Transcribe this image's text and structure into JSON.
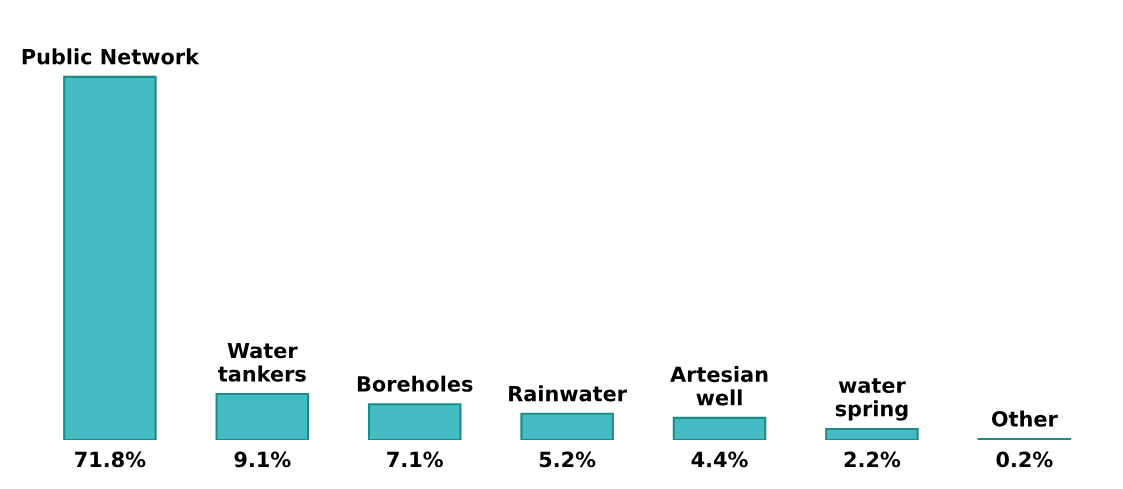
{
  "chart_data": {
    "type": "bar",
    "categories": [
      "Public Network",
      "Water\ntankers",
      "Boreholes",
      "Rainwater",
      "Artesian\nwell",
      "water\nspring",
      "Other"
    ],
    "values": [
      71.8,
      9.1,
      7.1,
      5.2,
      4.4,
      2.2,
      0.2
    ],
    "color": "#45bcc4",
    "value_labels": [
      "71.8%",
      "9.1%",
      "7.1%",
      "5.2%",
      "4.4%",
      "2.2%",
      "0.2%"
    ]
  }
}
